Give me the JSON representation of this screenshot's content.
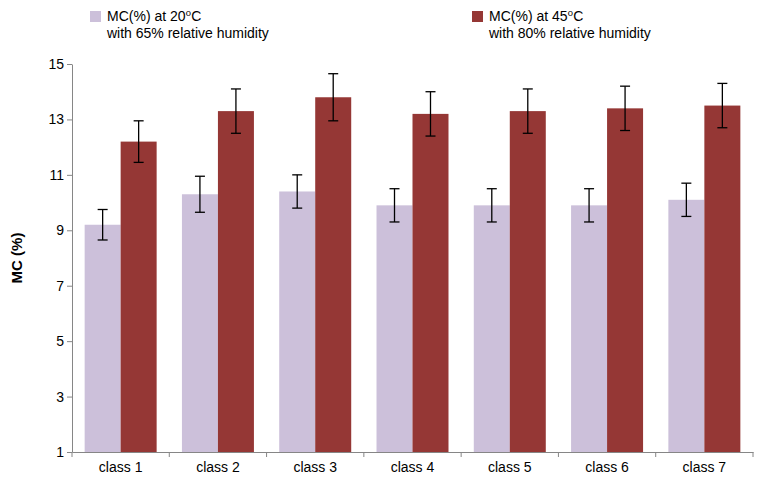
{
  "chart_data": {
    "type": "bar",
    "y_label": "MC (%)",
    "categories": [
      "class 1",
      "class 2",
      "class 3",
      "class 4",
      "class 5",
      "class 6",
      "class 7"
    ],
    "series": [
      {
        "name": "MC(%) at 20⁰C\nwith 65% relative humidity",
        "color": "#ccc0da",
        "values": [
          9.2,
          10.3,
          10.4,
          9.9,
          9.9,
          9.9,
          10.1
        ],
        "errors": [
          0.55,
          0.65,
          0.6,
          0.6,
          0.6,
          0.6,
          0.6
        ]
      },
      {
        "name": "MC(%) at 45⁰C\nwith 80% relative humidity",
        "color": "#953735",
        "values": [
          12.2,
          13.3,
          13.8,
          13.2,
          13.3,
          13.4,
          13.5
        ],
        "errors": [
          0.75,
          0.8,
          0.85,
          0.8,
          0.8,
          0.8,
          0.8
        ]
      }
    ],
    "ylim": [
      1,
      15
    ],
    "yticks": [
      1,
      3,
      5,
      7,
      9,
      11,
      13,
      15
    ],
    "grid": false,
    "legend": "top"
  }
}
